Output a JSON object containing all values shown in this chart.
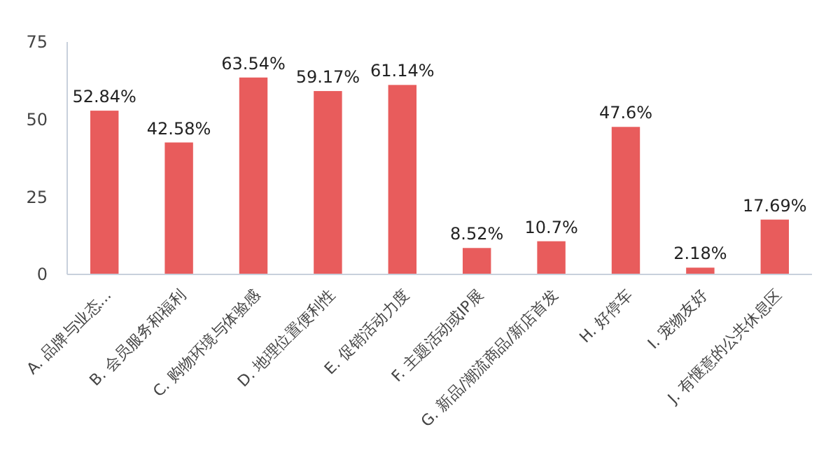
{
  "chart_data": {
    "type": "bar",
    "categories": [
      "A. 品牌与业态...",
      "B. 会员服务和福利",
      "C. 购物环境与体验感",
      "D. 地理位置便利性",
      "E. 促销活动力度",
      "F. 主题活动或IP展",
      "G. 新品/潮流商品/新店首发",
      "H. 好停车",
      "I. 宠物友好",
      "J. 有惬意的公共休息区"
    ],
    "values": [
      52.84,
      42.58,
      63.54,
      59.17,
      61.14,
      8.52,
      10.7,
      47.6,
      2.18,
      17.69
    ],
    "value_labels": [
      "52.84%",
      "42.58%",
      "63.54%",
      "59.17%",
      "61.14%",
      "8.52%",
      "10.7%",
      "47.6%",
      "2.18%",
      "17.69%"
    ],
    "color": "#e85c5c",
    "ylim": [
      0,
      75
    ],
    "yticks": [
      0,
      25,
      50,
      75
    ],
    "grid": false
  }
}
